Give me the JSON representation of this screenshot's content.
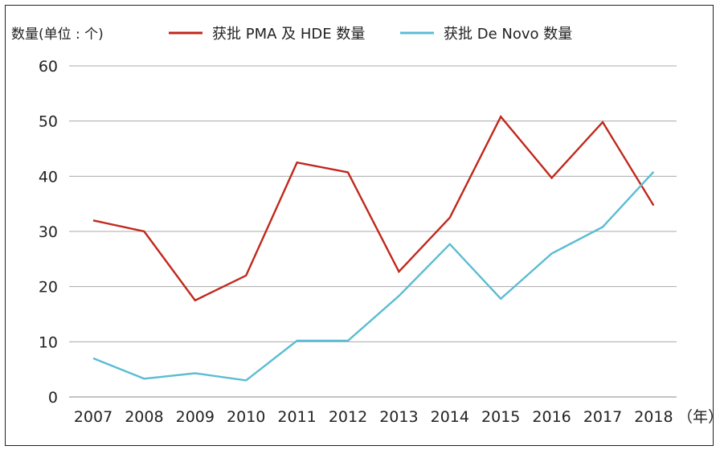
{
  "chart_data": {
    "type": "line",
    "y_unit_label": "数量(单位 : 个)",
    "x_unit_label": "（年）",
    "categories": [
      "2007",
      "2008",
      "2009",
      "2010",
      "2011",
      "2012",
      "2013",
      "2014",
      "2015",
      "2016",
      "2017",
      "2018"
    ],
    "ylim": [
      0,
      60
    ],
    "yticks": [
      0,
      10,
      20,
      30,
      40,
      50,
      60
    ],
    "grid": true,
    "legend_position": "top",
    "series": [
      {
        "name": "获批 PMA 及 HDE 数量",
        "color": "#c0281c",
        "values": [
          32,
          30,
          17.5,
          22,
          42.5,
          40.7,
          22.7,
          32.5,
          50.8,
          39.7,
          49.8,
          34.7
        ]
      },
      {
        "name": "获批 De Novo 数量",
        "color": "#5bbcd3",
        "values": [
          7,
          3.3,
          4.3,
          3,
          10.2,
          10.2,
          18.3,
          27.7,
          17.8,
          26,
          30.8,
          40.8
        ]
      }
    ]
  }
}
